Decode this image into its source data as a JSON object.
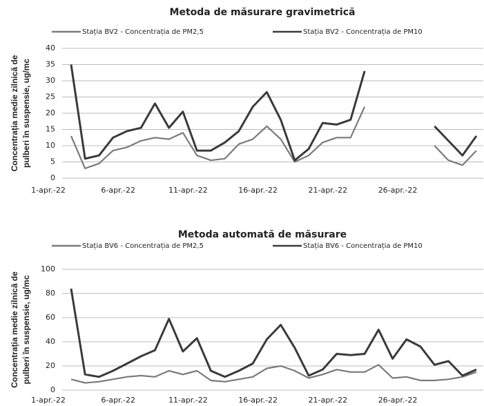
{
  "chart_data": [
    {
      "type": "line",
      "title": "Metoda de măsurare  gravimetrică",
      "ylabel": [
        "Concentrația medie zilnică de",
        "pulberi în suspensie, ug/mc"
      ],
      "categories": [
        "1-apr.-22",
        null,
        null,
        null,
        null,
        "6-apr.-22",
        null,
        null,
        null,
        null,
        "11-apr.-22",
        null,
        null,
        null,
        null,
        "16-apr.-22",
        null,
        null,
        null,
        null,
        "21-apr.-22",
        null,
        null,
        null,
        null,
        "26-apr.-22",
        null,
        null,
        null,
        null
      ],
      "series": [
        {
          "name": "Stația BV2 - Concentrația de PM2,5",
          "color": "#7a7a7a",
          "values": [
            13,
            3,
            4.5,
            8.5,
            9.5,
            11.5,
            12.5,
            12,
            14,
            7,
            5.5,
            6,
            10.5,
            12,
            16,
            12,
            5,
            7,
            11,
            12.5,
            12.5,
            22,
            null,
            null,
            null,
            null,
            10,
            5.5,
            4,
            8.5
          ]
        },
        {
          "name": "Stația BV2 - Concentrația de PM10",
          "color": "#3a3a3a",
          "values": [
            35,
            6,
            7,
            12.5,
            14.5,
            15.5,
            23,
            15.5,
            20.5,
            8.5,
            8.5,
            11,
            14.5,
            22,
            26.5,
            18,
            5.5,
            9,
            17,
            16.5,
            18,
            33,
            null,
            null,
            null,
            null,
            16,
            11.5,
            7,
            13
          ]
        }
      ],
      "ylim": [
        0,
        40
      ],
      "yticks": [
        0,
        5,
        10,
        15,
        20,
        25,
        30,
        35,
        40
      ],
      "grid": true
    },
    {
      "type": "line",
      "title": "Metoda automată de măsurare",
      "ylabel": [
        "Concentrația medie zilnică de",
        "pulberi în suspensie, ug/mc"
      ],
      "categories": [
        "1-apr.-22",
        null,
        null,
        null,
        null,
        "6-apr.-22",
        null,
        null,
        null,
        null,
        "11-apr.-22",
        null,
        null,
        null,
        null,
        "16-apr.-22",
        null,
        null,
        null,
        null,
        "21-apr.-22",
        null,
        null,
        null,
        null,
        "26-apr.-22",
        null,
        null,
        null,
        null
      ],
      "series": [
        {
          "name": "Stația BV6 - Concentrația de PM2,5",
          "color": "#7a7a7a",
          "values": [
            9,
            6,
            7,
            9,
            11,
            12,
            11,
            16,
            13,
            16,
            8,
            7,
            9,
            11,
            18,
            20,
            16,
            10,
            13,
            17,
            15,
            15,
            21,
            10,
            11,
            8,
            8,
            9,
            11,
            15
          ]
        },
        {
          "name": "Stația BV6 - Concentrația de PM10",
          "color": "#3a3a3a",
          "values": [
            84,
            13,
            11,
            16,
            22,
            28,
            33,
            59,
            32,
            43,
            16,
            11,
            16,
            22,
            42,
            54,
            35,
            12,
            17,
            30,
            29,
            30,
            50,
            26,
            42,
            36,
            21,
            24,
            12,
            17
          ]
        }
      ],
      "ylim": [
        0,
        100
      ],
      "yticks": [
        0,
        20,
        40,
        60,
        80,
        100
      ],
      "grid": true
    }
  ]
}
